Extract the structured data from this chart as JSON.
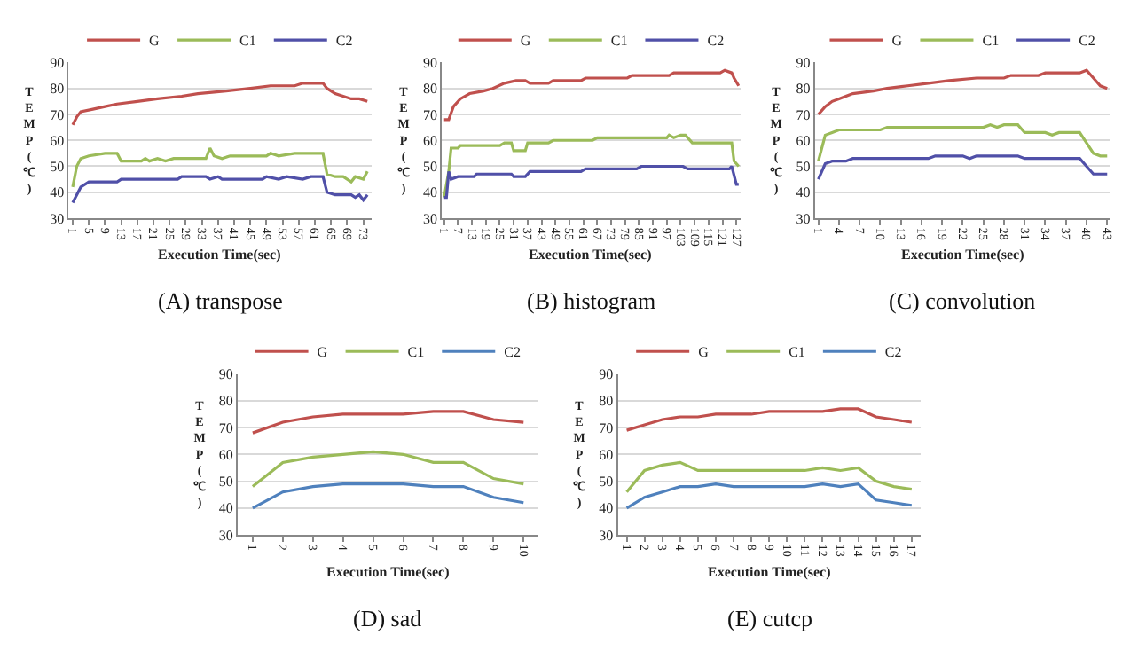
{
  "chart_data": [
    {
      "type": "line",
      "title": "(A) transpose",
      "xlabel": "Execution Time(sec)",
      "ylabel": "TEMP(℃)",
      "xlim": [
        0,
        75
      ],
      "xticks": [
        1,
        5,
        9,
        13,
        17,
        21,
        25,
        29,
        33,
        37,
        41,
        45,
        49,
        53,
        57,
        61,
        65,
        69,
        73
      ],
      "ylim": [
        30,
        90
      ],
      "yticks": [
        30,
        40,
        50,
        60,
        70,
        80,
        90
      ],
      "grid": "y",
      "legend": "top",
      "series": [
        {
          "name": "G",
          "color": "#c0504d",
          "x": [
            1,
            2,
            3,
            6,
            9,
            12,
            17,
            22,
            28,
            32,
            39,
            45,
            50,
            56,
            58,
            63,
            64,
            66,
            68,
            70,
            72,
            74
          ],
          "values": [
            66,
            69,
            71,
            72,
            73,
            74,
            75,
            76,
            77,
            78,
            79,
            80,
            81,
            81,
            82,
            82,
            80,
            78,
            77,
            76,
            76,
            75
          ]
        },
        {
          "name": "C1",
          "color": "#9bbb59",
          "x": [
            1,
            2,
            3,
            5,
            9,
            12,
            13,
            18,
            19,
            20,
            22,
            24,
            26,
            34,
            35,
            36,
            38,
            40,
            49,
            50,
            52,
            56,
            63,
            64,
            66,
            68,
            70,
            71,
            73,
            74
          ],
          "values": [
            42,
            50,
            53,
            54,
            55,
            55,
            52,
            52,
            53,
            52,
            53,
            52,
            53,
            53,
            57,
            54,
            53,
            54,
            54,
            55,
            54,
            55,
            55,
            47,
            46,
            46,
            44,
            46,
            45,
            48
          ]
        },
        {
          "name": "C2",
          "color": "#5050a8",
          "x": [
            1,
            3,
            5,
            12,
            13,
            27,
            28,
            34,
            35,
            37,
            38,
            48,
            49,
            52,
            54,
            58,
            60,
            63,
            64,
            66,
            70,
            71,
            72,
            73,
            74
          ],
          "values": [
            36,
            42,
            44,
            44,
            45,
            45,
            46,
            46,
            45,
            46,
            45,
            45,
            46,
            45,
            46,
            45,
            46,
            46,
            40,
            39,
            39,
            38,
            39,
            37,
            39
          ]
        }
      ]
    },
    {
      "type": "line",
      "title": "(B) histogram",
      "xlabel": "Execution Time(sec)",
      "ylabel": "TEMP(℃)",
      "xlim": [
        0,
        129
      ],
      "xticks": [
        1,
        7,
        13,
        19,
        25,
        31,
        37,
        43,
        49,
        55,
        61,
        67,
        73,
        79,
        85,
        91,
        97,
        103,
        109,
        115,
        121,
        127
      ],
      "ylim": [
        30,
        90
      ],
      "yticks": [
        30,
        40,
        50,
        60,
        70,
        80,
        90
      ],
      "grid": "y",
      "legend": "top",
      "series": [
        {
          "name": "G",
          "color": "#c0504d",
          "x": [
            1,
            3,
            5,
            8,
            12,
            18,
            22,
            27,
            32,
            36,
            38,
            46,
            48,
            60,
            62,
            80,
            82,
            98,
            100,
            120,
            122,
            125,
            126,
            128
          ],
          "values": [
            68,
            68,
            73,
            76,
            78,
            79,
            80,
            82,
            83,
            83,
            82,
            82,
            83,
            83,
            84,
            84,
            85,
            85,
            86,
            86,
            87,
            86,
            84,
            81
          ]
        },
        {
          "name": "C1",
          "color": "#9bbb59",
          "x": [
            1,
            3,
            4,
            7,
            8,
            25,
            27,
            30,
            31,
            36,
            37,
            46,
            48,
            65,
            67,
            97,
            98,
            100,
            103,
            105,
            108,
            125,
            126,
            128
          ],
          "values": [
            38,
            48,
            57,
            57,
            58,
            58,
            59,
            59,
            56,
            56,
            59,
            59,
            60,
            60,
            61,
            61,
            62,
            61,
            62,
            62,
            59,
            59,
            52,
            50
          ]
        },
        {
          "name": "C2",
          "color": "#5050a8",
          "x": [
            1,
            2,
            3,
            4,
            7,
            14,
            15,
            30,
            31,
            36,
            38,
            60,
            62,
            84,
            86,
            104,
            106,
            124,
            125,
            127,
            128
          ],
          "values": [
            38,
            38,
            48,
            45,
            46,
            46,
            47,
            47,
            46,
            46,
            48,
            48,
            49,
            49,
            50,
            50,
            49,
            49,
            50,
            43,
            43
          ]
        }
      ]
    },
    {
      "type": "line",
      "title": "(C) convolution",
      "xlabel": "Execution Time(sec)",
      "ylabel": "TEMP(℃)",
      "xlim": [
        0.5,
        43.5
      ],
      "xticks": [
        1,
        4,
        7,
        10,
        13,
        16,
        19,
        22,
        25,
        28,
        31,
        34,
        37,
        40,
        43
      ],
      "ylim": [
        30,
        90
      ],
      "yticks": [
        30,
        40,
        50,
        60,
        70,
        80,
        90
      ],
      "grid": "y",
      "legend": "top",
      "series": [
        {
          "name": "G",
          "color": "#c0504d",
          "x": [
            1,
            2,
            3,
            4,
            5,
            6,
            9,
            11,
            14,
            17,
            20,
            24,
            28,
            29,
            33,
            34,
            39,
            40,
            41,
            42,
            43
          ],
          "values": [
            70,
            73,
            75,
            76,
            77,
            78,
            79,
            80,
            81,
            82,
            83,
            84,
            84,
            85,
            85,
            86,
            86,
            87,
            84,
            81,
            80
          ]
        },
        {
          "name": "C1",
          "color": "#9bbb59",
          "x": [
            1,
            2,
            3,
            4,
            10,
            11,
            25,
            26,
            27,
            28,
            30,
            31,
            34,
            35,
            36,
            39,
            40,
            41,
            42,
            43
          ],
          "values": [
            52,
            62,
            63,
            64,
            64,
            65,
            65,
            66,
            65,
            66,
            66,
            63,
            63,
            62,
            63,
            63,
            59,
            55,
            54,
            54
          ]
        },
        {
          "name": "C2",
          "color": "#5050a8",
          "x": [
            1,
            2,
            3,
            5,
            6,
            17,
            18,
            22,
            23,
            24,
            30,
            31,
            39,
            40,
            41,
            43
          ],
          "values": [
            45,
            51,
            52,
            52,
            53,
            53,
            54,
            54,
            53,
            54,
            54,
            53,
            53,
            50,
            47,
            47
          ]
        }
      ]
    },
    {
      "type": "line",
      "title": "(D) sad",
      "xlabel": "Execution Time(sec)",
      "ylabel": "TEMP(℃)",
      "categories": [
        "1",
        "2",
        "3",
        "4",
        "5",
        "6",
        "7",
        "8",
        "9",
        "10"
      ],
      "ylim": [
        30,
        90
      ],
      "yticks": [
        30,
        40,
        50,
        60,
        70,
        80,
        90
      ],
      "grid": "y",
      "legend": "top",
      "series": [
        {
          "name": "G",
          "color": "#c0504d",
          "values": [
            68,
            72,
            74,
            75,
            75,
            75,
            76,
            76,
            73,
            72
          ]
        },
        {
          "name": "C1",
          "color": "#9bbb59",
          "values": [
            48,
            57,
            59,
            60,
            61,
            60,
            57,
            57,
            51,
            49
          ]
        },
        {
          "name": "C2",
          "color": "#4f81bd",
          "values": [
            40,
            46,
            48,
            49,
            49,
            49,
            48,
            48,
            44,
            42
          ]
        }
      ]
    },
    {
      "type": "line",
      "title": "(E) cutcp",
      "xlabel": "Execution Time(sec)",
      "ylabel": "TEMP(℃)",
      "categories": [
        "1",
        "2",
        "3",
        "4",
        "5",
        "6",
        "7",
        "8",
        "9",
        "10",
        "11",
        "12",
        "13",
        "14",
        "15",
        "16",
        "17"
      ],
      "ylim": [
        30,
        90
      ],
      "yticks": [
        30,
        40,
        50,
        60,
        70,
        80,
        90
      ],
      "grid": "y",
      "legend": "top",
      "series": [
        {
          "name": "G",
          "color": "#c0504d",
          "values": [
            69,
            71,
            73,
            74,
            74,
            75,
            75,
            75,
            76,
            76,
            76,
            76,
            77,
            77,
            74,
            73,
            72
          ]
        },
        {
          "name": "C1",
          "color": "#9bbb59",
          "values": [
            46,
            54,
            56,
            57,
            54,
            54,
            54,
            54,
            54,
            54,
            54,
            55,
            54,
            55,
            50,
            48,
            47
          ]
        },
        {
          "name": "C2",
          "color": "#4f81bd",
          "values": [
            40,
            44,
            46,
            48,
            48,
            49,
            48,
            48,
            48,
            48,
            48,
            49,
            48,
            49,
            43,
            42,
            41
          ]
        }
      ]
    }
  ]
}
